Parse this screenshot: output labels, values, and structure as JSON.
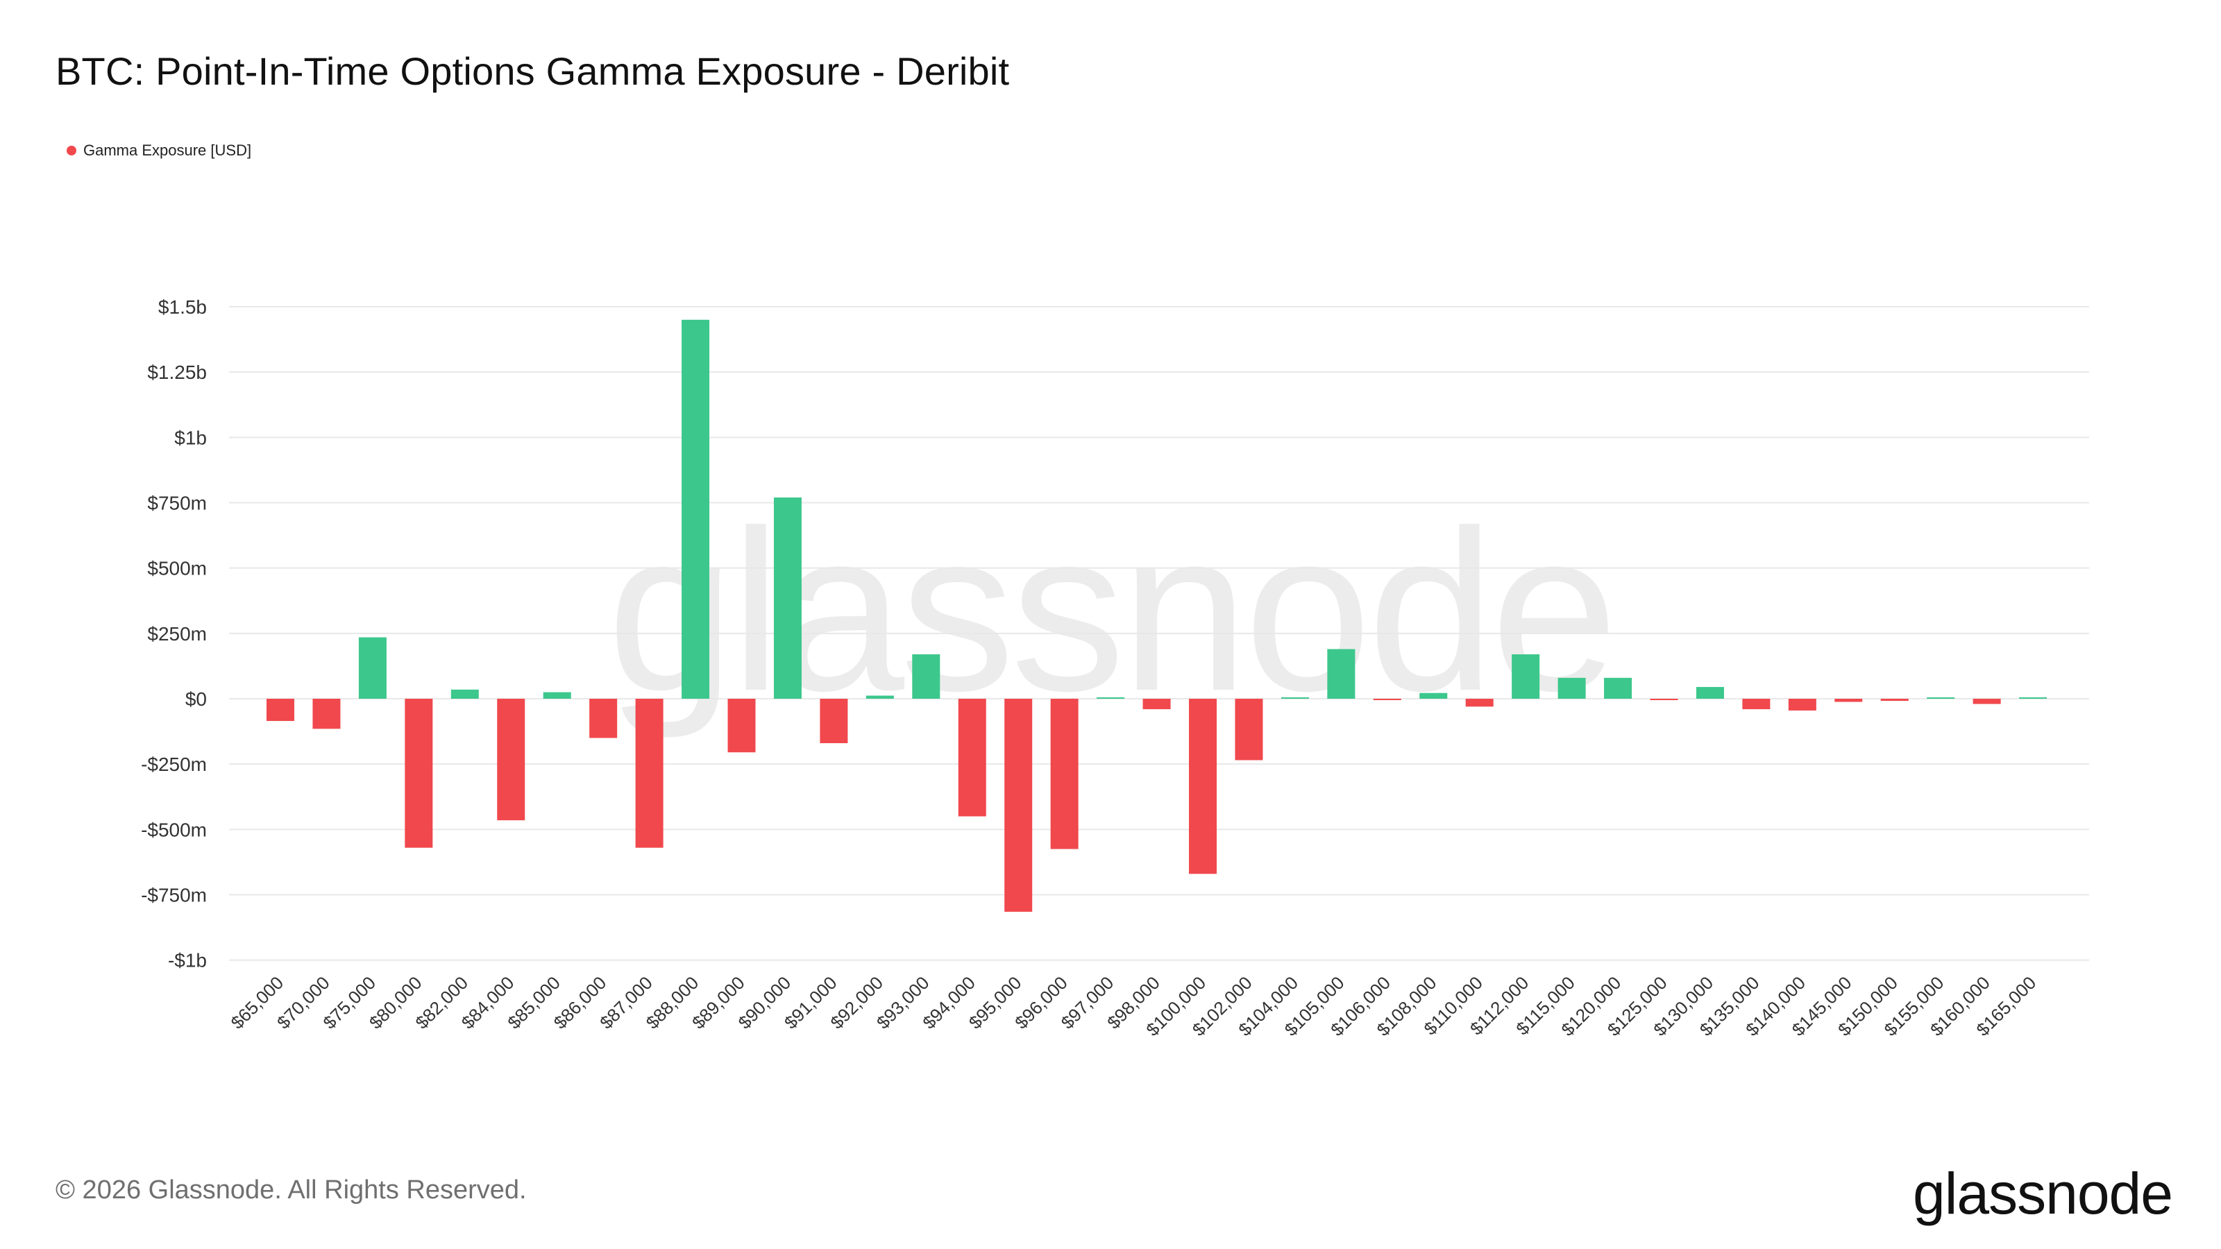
{
  "title": "BTC: Point-In-Time Options Gamma Exposure - Deribit",
  "legend_label": "Gamma Exposure [USD]",
  "copyright": "© 2026 Glassnode. All Rights Reserved.",
  "brand": "glassnode",
  "watermark": "glassnode",
  "colors": {
    "positive": "#3cc78c",
    "negative": "#f0484d",
    "grid": "#e8e8e8"
  },
  "chart_data": {
    "type": "bar",
    "title": "BTC: Point-In-Time Options Gamma Exposure - Deribit",
    "ylim": [
      -1.1,
      1.5
    ],
    "y_unit": "billions USD",
    "y_ticks": [
      1.5,
      1.25,
      1,
      0.75,
      0.5,
      0.25,
      0,
      -0.25,
      -0.5,
      -0.75,
      -1
    ],
    "y_tick_labels": [
      "$1.5b",
      "$1.25b",
      "$1b",
      "$750m",
      "$500m",
      "$250m",
      "$0",
      "-$250m",
      "-$500m",
      "-$750m",
      "-$1b"
    ],
    "grid": true,
    "legend_position": "top-left",
    "categories": [
      "$65,000",
      "$70,000",
      "$75,000",
      "$80,000",
      "$82,000",
      "$84,000",
      "$85,000",
      "$86,000",
      "$87,000",
      "$88,000",
      "$89,000",
      "$90,000",
      "$91,000",
      "$92,000",
      "$93,000",
      "$94,000",
      "$95,000",
      "$96,000",
      "$97,000",
      "$98,000",
      "$100,000",
      "$102,000",
      "$104,000",
      "$105,000",
      "$106,000",
      "$108,000",
      "$110,000",
      "$112,000",
      "$115,000",
      "$120,000",
      "$125,000",
      "$130,000",
      "$135,000",
      "$140,000",
      "$145,000",
      "$150,000",
      "$155,000",
      "$160,000",
      "$165,000"
    ],
    "series": [
      {
        "name": "Gamma Exposure [USD]",
        "values": [
          -0.085,
          -0.115,
          0.235,
          -0.57,
          0.035,
          -0.465,
          0.025,
          -0.15,
          -0.57,
          1.45,
          -0.205,
          0.77,
          -0.17,
          0.012,
          0.17,
          -0.45,
          -0.815,
          -0.575,
          0.005,
          -0.04,
          -0.67,
          -0.235,
          0.004,
          0.19,
          -0.004,
          0.022,
          -0.03,
          0.17,
          0.08,
          0.08,
          -0.003,
          0.045,
          -0.04,
          -0.045,
          -0.012,
          -0.008,
          0.005,
          -0.02,
          0.003
        ]
      }
    ]
  }
}
